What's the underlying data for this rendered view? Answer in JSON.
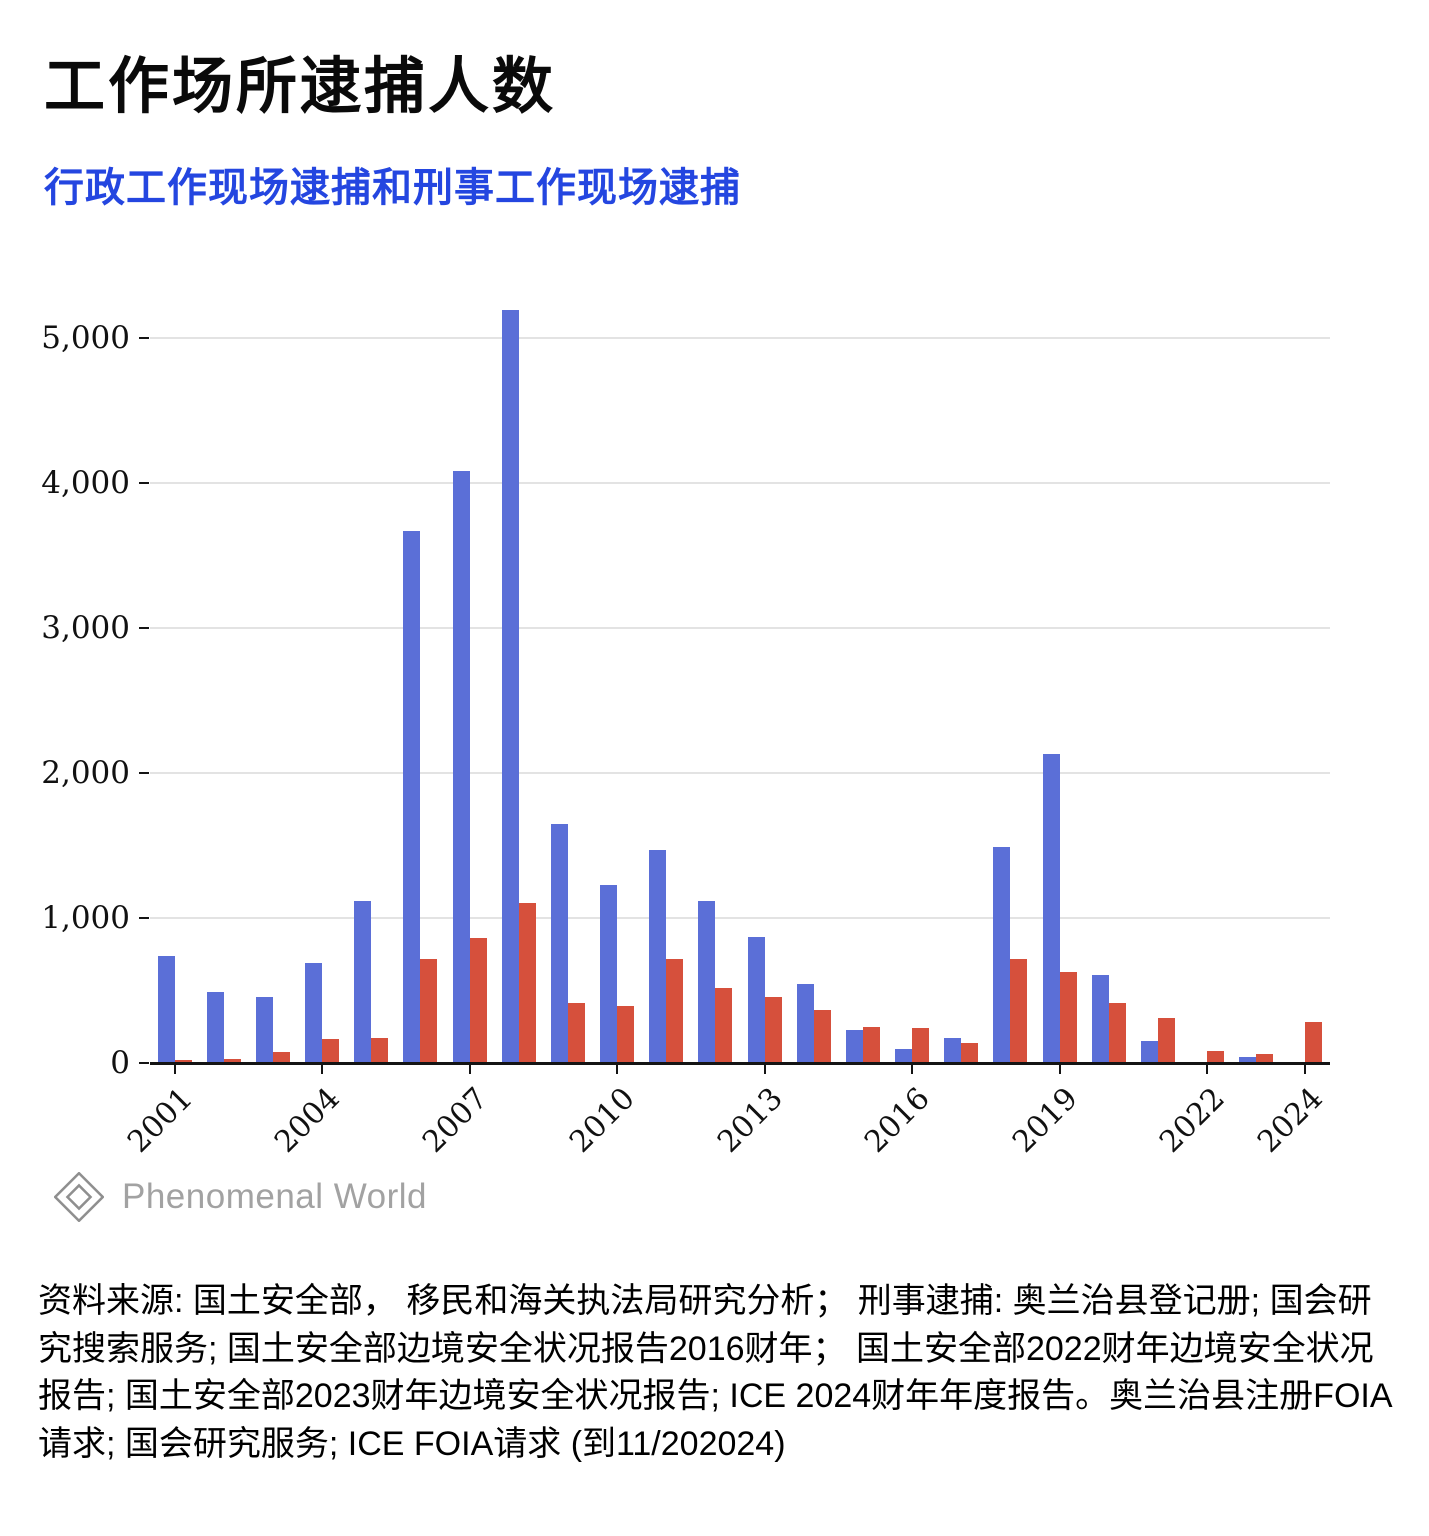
{
  "title": "工作场所逮捕人数",
  "subtitle": "行政工作现场逮捕和刑事工作现场逮捕",
  "logo": {
    "text": "Phenomenal World"
  },
  "source": "资料来源: 国土安全部， 移民和海关执法局研究分析； 刑事逮捕: 奥兰治县登记册; 国会研究搜索服务; 国土安全部边境安全状况报告2016财年； 国土安全部2022财年边境安全状况报告; 国土安全部2023财年边境安全状况报告; ICE 2024财年年度报告。奥兰治县注册FOIA请求; 国会研究服务; ICE FOIA请求 (到11/202024)",
  "colors": {
    "admin_bar": "#5b6fd7",
    "criminal_bar": "#d6503c",
    "subtitle": "#2446e0",
    "grid": "#e3e3e3",
    "axis": "#141414",
    "logo_gray": "#a2a2a2"
  },
  "chart_data": {
    "type": "bar",
    "title": "工作场所逮捕人数",
    "subtitle": "行政工作现场逮捕和刑事工作现场逮捕",
    "categories": [
      2001,
      2002,
      2003,
      2004,
      2005,
      2006,
      2007,
      2008,
      2009,
      2010,
      2011,
      2012,
      2013,
      2014,
      2015,
      2016,
      2017,
      2018,
      2019,
      2020,
      2021,
      2022,
      2023,
      2024
    ],
    "series": [
      {
        "name": "行政工作现场逮捕",
        "color": "#5b6fd7",
        "values": [
          740,
          490,
          455,
          690,
          1120,
          3670,
          4080,
          5190,
          1650,
          1230,
          1470,
          1120,
          870,
          545,
          225,
          95,
          175,
          1490,
          2130,
          610,
          150,
          0,
          40,
          0
        ]
      },
      {
        "name": "刑事工作现场逮捕",
        "color": "#d6503c",
        "values": [
          20,
          25,
          75,
          165,
          175,
          715,
          860,
          1105,
          415,
          395,
          715,
          520,
          455,
          365,
          245,
          240,
          140,
          715,
          630,
          415,
          310,
          85,
          60,
          285
        ]
      }
    ],
    "ylim": [
      0,
      5260
    ],
    "yticks": [
      0,
      1000,
      2000,
      3000,
      4000,
      5000
    ],
    "ytick_labels": [
      "0",
      "1,000",
      "2,000",
      "3,000",
      "4,000",
      "5,000"
    ],
    "xticks": [
      2001,
      2004,
      2007,
      2010,
      2013,
      2016,
      2019,
      2022,
      2024
    ],
    "grid": true,
    "legend_position": "none"
  }
}
